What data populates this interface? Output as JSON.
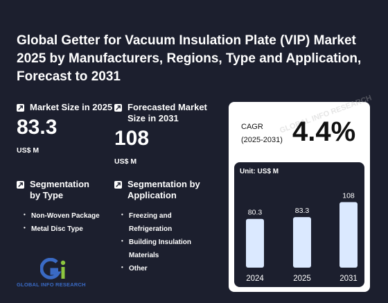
{
  "title": "Global Getter for Vacuum Insulation Plate (VIP) Market 2025 by Manufacturers, Regions, Type and Application, Forecast to 2031",
  "market_size": {
    "label": "Market Size in 2025",
    "value": "83.3",
    "unit": "US$ M"
  },
  "forecast_size": {
    "label": "Forecasted Market Size in 2031",
    "value": "108",
    "unit": "US$ M"
  },
  "segmentation_type": {
    "label": "Segmentation by Type",
    "items": [
      "Non-Woven Package",
      "Metal Disc Type"
    ]
  },
  "segmentation_application": {
    "label": "Segmentation by Application",
    "items": [
      "Freezing and Refrigeration",
      "Building Insulation Materials",
      "Other"
    ]
  },
  "cagr": {
    "label_line1": "CAGR",
    "label_line2": "(2025-2031)",
    "value": "4.4%"
  },
  "logo": {
    "text": "GLOBAL INFO RESEARCH"
  },
  "watermark": "GLOBAL INFO RESEARCH",
  "colors": {
    "background": "#1c1f2e",
    "bar": "#dbe9ff",
    "logo_blue": "#3a6ac4",
    "logo_green": "#8dc63f"
  },
  "chart_data": {
    "type": "bar",
    "unit_label": "Unit: US$ M",
    "categories": [
      "2024",
      "2025",
      "2031"
    ],
    "values": [
      80.3,
      83.3,
      108
    ],
    "value_labels": [
      "80.3",
      "83.3",
      "108"
    ],
    "ylim": [
      0,
      120
    ]
  }
}
